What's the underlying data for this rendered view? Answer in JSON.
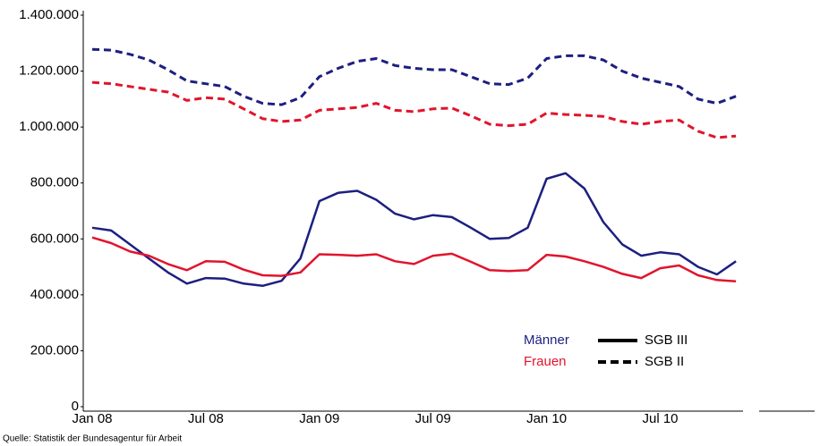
{
  "chart_data": {
    "type": "line",
    "source": "Quelle: Statistik der Bundesagentur für Arbeit",
    "categories": [
      "Jan 08",
      null,
      null,
      null,
      null,
      null,
      "Jul 08",
      null,
      null,
      null,
      null,
      null,
      "Jan 09",
      null,
      null,
      null,
      null,
      null,
      "Jul 09",
      null,
      null,
      null,
      null,
      null,
      "Jan 10",
      null,
      null,
      null,
      null,
      null,
      "Jul 10",
      null,
      null,
      null,
      null
    ],
    "ylim": [
      0,
      1400000
    ],
    "yticks": [
      0,
      {
        "value": 200000,
        "label": "200.000"
      },
      {
        "value": 400000,
        "label": "400.000"
      },
      {
        "value": 600000,
        "label": "600.000"
      },
      {
        "value": 800000,
        "label": "800.000"
      },
      {
        "value": 1000000,
        "label": "1.000.000"
      },
      {
        "value": 1200000,
        "label": "1.200.000"
      },
      {
        "value": 1400000,
        "label": "1.400.000"
      }
    ],
    "legend": {
      "groups": [
        {
          "label": "Männer",
          "color": "#1c1f7f"
        },
        {
          "label": "Frauen",
          "color": "#e1142d"
        }
      ],
      "styles": [
        {
          "label": "SGB III",
          "dash": false
        },
        {
          "label": "SGB II",
          "dash": true
        }
      ]
    },
    "series": [
      {
        "color": "#1c1f7f",
        "dash": false,
        "values": [
          640000,
          630000,
          580000,
          530000,
          480000,
          440000,
          460000,
          458000,
          440000,
          432000,
          450000,
          530000,
          735000,
          765000,
          772000,
          740000,
          690000,
          670000,
          685000,
          678000,
          640000,
          600000,
          603000,
          640000,
          815000,
          835000,
          780000,
          660000,
          580000,
          540000,
          552000,
          545000,
          500000,
          473000,
          520000
        ]
      },
      {
        "color": "#e1142d",
        "dash": false,
        "values": [
          605000,
          585000,
          555000,
          540000,
          510000,
          488000,
          520000,
          518000,
          490000,
          470000,
          468000,
          480000,
          545000,
          543000,
          540000,
          545000,
          520000,
          510000,
          540000,
          547000,
          518000,
          488000,
          485000,
          488000,
          543000,
          537000,
          520000,
          500000,
          475000,
          460000,
          495000,
          505000,
          470000,
          453000,
          448000
        ]
      },
      {
        "color": "#1c1f7f",
        "dash": true,
        "values": [
          1278000,
          1275000,
          1260000,
          1240000,
          1205000,
          1165000,
          1155000,
          1145000,
          1110000,
          1085000,
          1080000,
          1105000,
          1180000,
          1210000,
          1235000,
          1245000,
          1220000,
          1210000,
          1205000,
          1205000,
          1180000,
          1155000,
          1152000,
          1175000,
          1245000,
          1255000,
          1255000,
          1240000,
          1200000,
          1175000,
          1160000,
          1145000,
          1100000,
          1085000,
          1110000
        ]
      },
      {
        "color": "#e1142d",
        "dash": true,
        "values": [
          1160000,
          1155000,
          1145000,
          1135000,
          1125000,
          1095000,
          1105000,
          1100000,
          1065000,
          1030000,
          1020000,
          1025000,
          1060000,
          1065000,
          1070000,
          1085000,
          1060000,
          1055000,
          1065000,
          1068000,
          1040000,
          1010000,
          1005000,
          1010000,
          1050000,
          1045000,
          1042000,
          1038000,
          1020000,
          1010000,
          1020000,
          1025000,
          985000,
          962000,
          968000
        ]
      }
    ]
  }
}
